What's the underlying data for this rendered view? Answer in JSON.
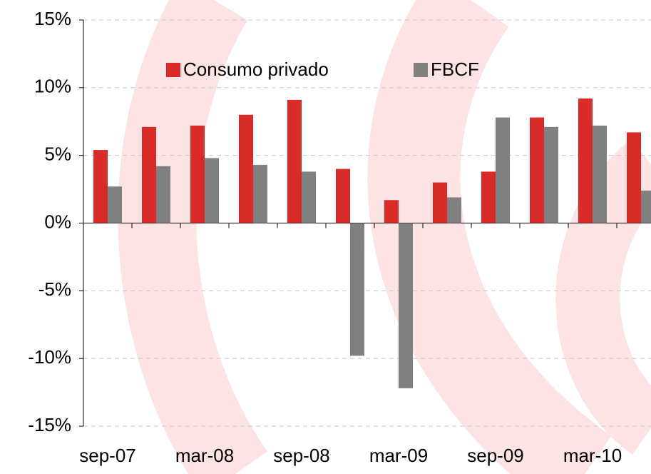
{
  "chart_data": {
    "type": "bar",
    "categories": [
      "sep-07",
      null,
      "mar-08",
      null,
      "sep-08",
      null,
      "mar-09",
      null,
      "sep-09",
      null,
      "mar-10",
      null
    ],
    "series": [
      {
        "name": "Consumo privado",
        "color": "#d92b27",
        "values": [
          5.4,
          7.1,
          7.2,
          8.0,
          9.1,
          4.0,
          1.7,
          3.0,
          3.8,
          7.8,
          9.2,
          6.7
        ]
      },
      {
        "name": "FBCF",
        "color": "#808080",
        "values": [
          2.7,
          4.2,
          4.8,
          4.3,
          3.8,
          -9.8,
          -12.2,
          1.9,
          7.8,
          7.1,
          7.2,
          2.4
        ]
      }
    ],
    "ylim": [
      -15,
      15
    ],
    "yticks": [
      {
        "value": -15,
        "label": "-15%"
      },
      {
        "value": -10,
        "label": "-10%"
      },
      {
        "value": -5,
        "label": "-5%"
      },
      {
        "value": 0,
        "label": "0%"
      },
      {
        "value": 5,
        "label": "5%"
      },
      {
        "value": 10,
        "label": "10%"
      },
      {
        "value": 15,
        "label": "15%"
      }
    ],
    "grid": true,
    "legend": "top"
  }
}
